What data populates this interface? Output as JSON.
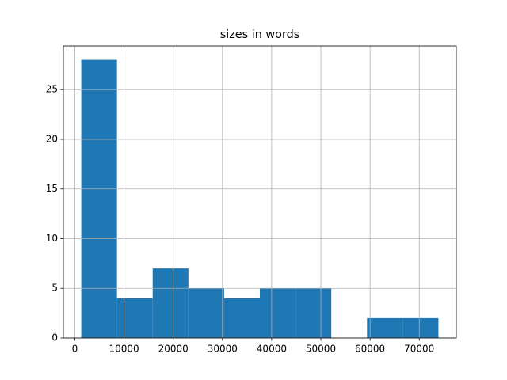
{
  "chart_data": {
    "type": "histogram",
    "title": "sizes in words",
    "bins": [
      1300,
      8560,
      15820,
      23080,
      30340,
      37600,
      44860,
      52120,
      59380,
      66640,
      73900
    ],
    "values": [
      28,
      4,
      7,
      5,
      4,
      5,
      5,
      0,
      2,
      2
    ],
    "color": "#1f77b4",
    "xlim": [
      -2330,
      77530
    ],
    "xticks": [
      0,
      10000,
      20000,
      30000,
      40000,
      50000,
      60000,
      70000
    ],
    "ylim": [
      0,
      29.4
    ],
    "yticks": [
      0,
      5,
      10,
      15,
      20,
      25
    ],
    "grid": true
  }
}
